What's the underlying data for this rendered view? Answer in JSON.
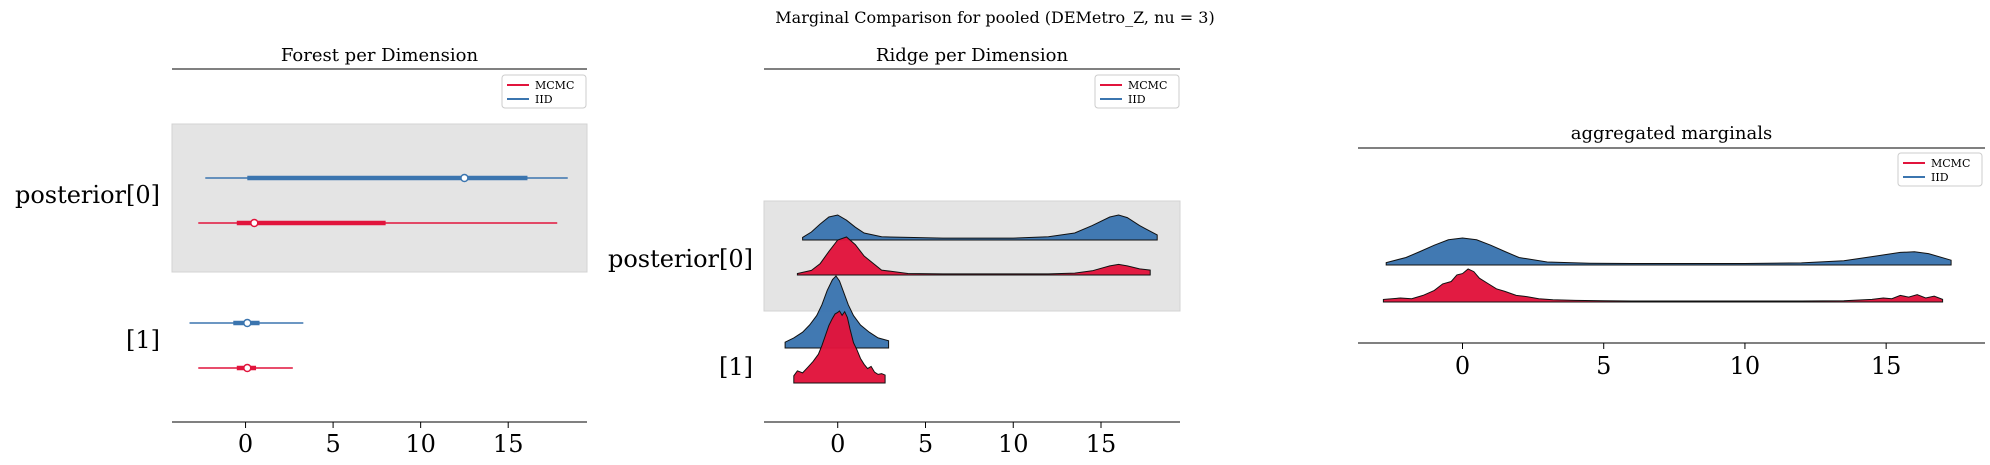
{
  "figure": {
    "suptitle": "Marginal Comparison for pooled (DEMetro_Z, nu = 3)"
  },
  "colors": {
    "MCMC": "#e1143c",
    "IID": "#3b75af",
    "band": "#e4e4e4",
    "band_edge": "#d3d3d3"
  },
  "chart_data": [
    {
      "type": "forest",
      "title": "Forest per Dimension",
      "xlim": [
        -4.2,
        19.5
      ],
      "xticks": [
        0,
        5,
        10,
        15
      ],
      "row_labels": [
        "posterior[0]",
        "[1]"
      ],
      "legend": {
        "placement": "top-right",
        "entries": [
          "MCMC",
          "IID"
        ]
      },
      "series": [
        {
          "name": "MCMC",
          "rows": [
            {
              "whisker": [
                -2.7,
                17.8
              ],
              "box": [
                -0.5,
                8.0
              ],
              "median": 0.5
            },
            {
              "whisker": [
                -2.7,
                2.7
              ],
              "box": [
                -0.5,
                0.6
              ],
              "median": 0.1
            }
          ]
        },
        {
          "name": "IID",
          "rows": [
            {
              "whisker": [
                -2.3,
                18.4
              ],
              "box": [
                0.1,
                16.1
              ],
              "median": 12.5
            },
            {
              "whisker": [
                -3.2,
                3.3
              ],
              "box": [
                -0.7,
                0.8
              ],
              "median": 0.1
            }
          ]
        }
      ]
    },
    {
      "type": "ridge",
      "title": "Ridge per Dimension",
      "xlim": [
        -4.2,
        19.5
      ],
      "xticks": [
        0,
        5,
        10,
        15
      ],
      "row_labels": [
        "posterior[0]",
        "[1]"
      ],
      "legend": {
        "placement": "top-right",
        "entries": [
          "MCMC",
          "IID"
        ]
      },
      "series": [
        {
          "name": "MCMC",
          "rows": [
            {
              "x": [
                -2.3,
                -1.5,
                -1.0,
                -0.5,
                0.0,
                0.5,
                1.0,
                1.5,
                2.5,
                4,
                6,
                8,
                10,
                12,
                13.5,
                14.5,
                15.5,
                16.0,
                16.5,
                17.2,
                17.8
              ],
              "y": [
                0.04,
                0.12,
                0.3,
                0.62,
                0.92,
                1.0,
                0.8,
                0.5,
                0.13,
                0.04,
                0.03,
                0.03,
                0.03,
                0.03,
                0.05,
                0.11,
                0.24,
                0.28,
                0.24,
                0.16,
                0.13
              ]
            },
            {
              "x": [
                -2.5,
                -2.3,
                -2.0,
                -1.7,
                -1.4,
                -1.1,
                -0.9,
                -0.7,
                -0.5,
                -0.3,
                -0.15,
                0.0,
                0.1,
                0.25,
                0.4,
                0.55,
                0.7,
                0.9,
                1.1,
                1.3,
                1.5,
                1.7,
                1.9,
                2.1,
                2.3,
                2.5,
                2.7
              ],
              "y": [
                0.1,
                0.17,
                0.14,
                0.22,
                0.3,
                0.4,
                0.52,
                0.66,
                0.8,
                0.9,
                0.96,
                0.98,
                1.0,
                0.94,
                0.99,
                0.91,
                0.75,
                0.56,
                0.46,
                0.34,
                0.26,
                0.2,
                0.23,
                0.15,
                0.12,
                0.13,
                0.11
              ]
            }
          ]
        },
        {
          "name": "IID",
          "rows": [
            {
              "x": [
                -2.0,
                -1.5,
                -1.0,
                -0.5,
                0.0,
                0.5,
                1.0,
                1.5,
                2.5,
                4,
                6,
                8,
                10,
                12,
                13.5,
                14.5,
                15.5,
                16.0,
                16.5,
                17.2,
                18.2
              ],
              "y": [
                0.08,
                0.25,
                0.5,
                0.72,
                0.78,
                0.62,
                0.4,
                0.22,
                0.1,
                0.08,
                0.06,
                0.06,
                0.06,
                0.1,
                0.22,
                0.45,
                0.72,
                0.78,
                0.7,
                0.45,
                0.16
              ]
            },
            {
              "x": [
                -3.0,
                -2.5,
                -2.0,
                -1.6,
                -1.2,
                -0.9,
                -0.6,
                -0.3,
                -0.1,
                0.1,
                0.3,
                0.6,
                0.9,
                1.3,
                1.8,
                2.3,
                2.9
              ],
              "y": [
                0.08,
                0.14,
                0.22,
                0.32,
                0.45,
                0.6,
                0.8,
                0.95,
                1.0,
                0.93,
                0.8,
                0.6,
                0.45,
                0.32,
                0.22,
                0.14,
                0.1
              ]
            }
          ]
        }
      ]
    },
    {
      "type": "ridge",
      "title": "aggregated marginals",
      "xlim": [
        -3.7,
        18.5
      ],
      "xticks": [
        0,
        5,
        10,
        15
      ],
      "legend": {
        "placement": "top-right",
        "entries": [
          "MCMC",
          "IID"
        ]
      },
      "series": [
        {
          "name": "MCMC",
          "x": [
            -2.8,
            -2.2,
            -1.8,
            -1.4,
            -1.0,
            -0.7,
            -0.4,
            -0.2,
            0.0,
            0.2,
            0.4,
            0.6,
            0.9,
            1.2,
            1.5,
            1.9,
            2.3,
            2.7,
            3.2,
            4.0,
            5.0,
            6,
            8,
            10,
            12,
            13.5,
            14.5,
            14.9,
            15.2,
            15.5,
            15.8,
            16.1,
            16.4,
            16.7,
            17.0
          ],
          "y": [
            0.08,
            0.12,
            0.1,
            0.2,
            0.35,
            0.55,
            0.62,
            0.82,
            0.86,
            1.0,
            0.92,
            0.72,
            0.56,
            0.4,
            0.32,
            0.2,
            0.16,
            0.1,
            0.07,
            0.05,
            0.04,
            0.03,
            0.03,
            0.03,
            0.03,
            0.04,
            0.08,
            0.12,
            0.1,
            0.2,
            0.15,
            0.22,
            0.12,
            0.18,
            0.08
          ]
        },
        {
          "name": "IID",
          "x": [
            -2.7,
            -2.0,
            -1.5,
            -1.0,
            -0.5,
            0.0,
            0.5,
            1.0,
            1.5,
            2.0,
            3.0,
            4.5,
            6,
            8,
            10,
            12,
            13.5,
            14.5,
            15.5,
            16.0,
            16.5,
            17.3
          ],
          "y": [
            0.08,
            0.25,
            0.45,
            0.66,
            0.84,
            0.9,
            0.84,
            0.66,
            0.45,
            0.25,
            0.1,
            0.06,
            0.05,
            0.05,
            0.05,
            0.07,
            0.14,
            0.28,
            0.42,
            0.44,
            0.38,
            0.16
          ]
        }
      ]
    }
  ]
}
